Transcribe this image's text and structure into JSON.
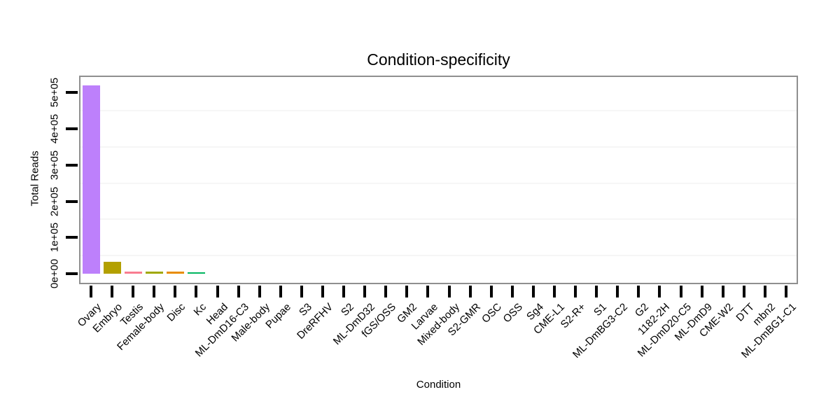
{
  "chart_data": {
    "type": "bar",
    "title": "Condition-specificity",
    "xlabel": "Condition",
    "ylabel": "Total Reads",
    "categories": [
      "Ovary",
      "Embryo",
      "Testis",
      "Female-body",
      "Disc",
      "Kc",
      "Head",
      "ML-DmD16-C3",
      "Male-body",
      "Pupae",
      "S3",
      "DreRFHV",
      "S2",
      "ML-DmD32",
      "fGS/OSS",
      "GM2",
      "Larvae",
      "Mixed-body",
      "S2-GMR",
      "OSC",
      "OSS",
      "Sg4",
      "CME-L1",
      "S2-R+",
      "S1",
      "ML-DmBG3-C2",
      "G2",
      "1182-2H",
      "ML-DmD20-C5",
      "ML-DmD9",
      "CME-W2",
      "DTT",
      "mbn2",
      "ML-DmBG1-C1"
    ],
    "values": [
      520000,
      32000,
      6000,
      5000,
      5000,
      4000,
      0,
      0,
      0,
      0,
      0,
      0,
      0,
      0,
      0,
      0,
      0,
      0,
      0,
      0,
      0,
      0,
      0,
      0,
      0,
      0,
      0,
      0,
      0,
      0,
      0,
      0,
      0,
      0
    ],
    "bar_colors": [
      "#bd80fb",
      "#b3a000",
      "#f97d90",
      "#a0a800",
      "#e88c00",
      "#00b55f",
      null,
      null,
      null,
      null,
      null,
      null,
      null,
      null,
      null,
      null,
      null,
      null,
      null,
      null,
      null,
      null,
      null,
      null,
      null,
      null,
      null,
      null,
      null,
      null,
      null,
      null,
      null,
      null
    ],
    "ylim": [
      0,
      543000
    ],
    "yticks": {
      "values": [
        0,
        100000,
        200000,
        300000,
        400000,
        500000
      ],
      "labels": [
        "0e+00",
        "1e+05",
        "2e+05",
        "3e+05",
        "4e+05",
        "5e+05"
      ]
    },
    "minor_gridlines": [
      50000,
      150000,
      250000,
      350000,
      450000
    ],
    "grid": "minor-horizontal-only",
    "legend_position": "none",
    "style_colors": {
      "panel_border": "#8f8f8f",
      "tick_mark": "#000000",
      "minor_gridline": "#f6f6f6",
      "background": "#ffffff",
      "text": "#000000"
    }
  }
}
